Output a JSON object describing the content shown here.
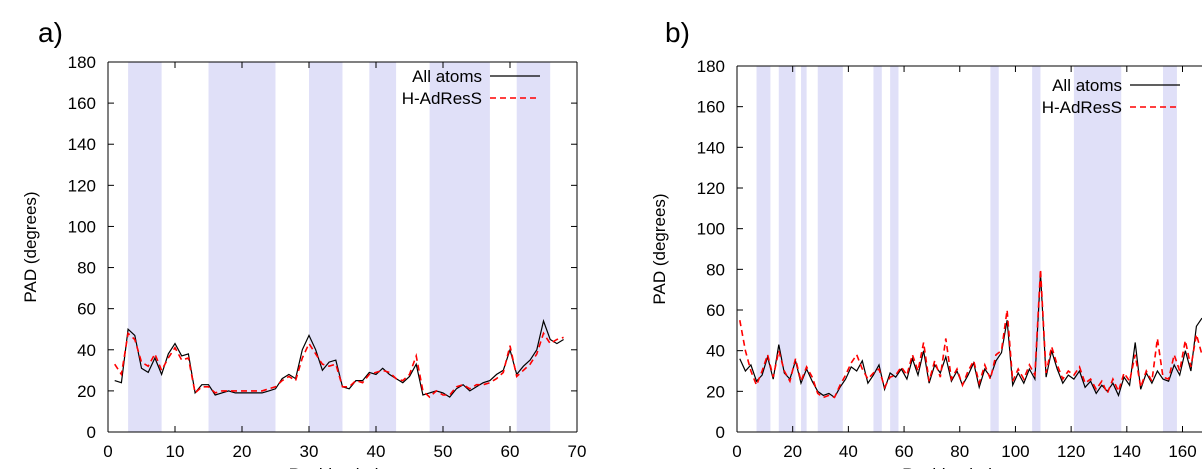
{
  "chart_data": [
    {
      "panel_label": "a)",
      "type": "line",
      "xlabel": "Residue index",
      "ylabel": "PAD (degrees)",
      "xlim": [
        0,
        70
      ],
      "ylim": [
        0,
        180
      ],
      "xticks": [
        "0",
        "10",
        "20",
        "30",
        "40",
        "50",
        "60",
        "70"
      ],
      "yticks": [
        "0",
        "20",
        "40",
        "60",
        "80",
        "100",
        "120",
        "140",
        "160",
        "180"
      ],
      "legend": "top-right",
      "grid": false,
      "shaded_regions": [
        [
          3,
          8
        ],
        [
          15,
          25
        ],
        [
          30,
          35
        ],
        [
          39,
          43
        ],
        [
          48,
          57
        ],
        [
          61,
          66
        ]
      ],
      "shade_color": "#e0e0f8",
      "series": [
        {
          "name": "All atoms",
          "color": "#000000",
          "style": "solid",
          "x": [
            1,
            2,
            3,
            4,
            5,
            6,
            7,
            8,
            9,
            10,
            11,
            12,
            13,
            14,
            15,
            16,
            17,
            18,
            19,
            20,
            21,
            22,
            23,
            24,
            25,
            26,
            27,
            28,
            29,
            30,
            31,
            32,
            33,
            34,
            35,
            36,
            37,
            38,
            39,
            40,
            41,
            42,
            43,
            44,
            45,
            46,
            47,
            48,
            49,
            50,
            51,
            52,
            53,
            54,
            55,
            56,
            57,
            58,
            59,
            60,
            61,
            62,
            63,
            64,
            65,
            66,
            67,
            68
          ],
          "y": [
            25,
            24,
            50,
            47,
            31,
            29,
            36,
            28,
            38,
            43,
            37,
            38,
            19,
            23,
            23,
            18,
            19,
            20,
            19,
            19,
            19,
            19,
            19,
            20,
            21,
            26,
            28,
            26,
            40,
            47,
            40,
            30,
            34,
            35,
            22,
            21,
            25,
            25,
            29,
            28,
            31,
            28,
            26,
            24,
            27,
            33,
            18,
            19,
            20,
            19,
            17,
            21,
            23,
            20,
            22,
            24,
            25,
            28,
            30,
            40,
            28,
            32,
            35,
            40,
            54,
            45,
            43,
            45
          ]
        },
        {
          "name": "H-AdResS",
          "color": "#ff0000",
          "style": "dashed",
          "x": [
            1,
            2,
            3,
            4,
            5,
            6,
            7,
            8,
            9,
            10,
            11,
            12,
            13,
            14,
            15,
            16,
            17,
            18,
            19,
            20,
            21,
            22,
            23,
            24,
            25,
            26,
            27,
            28,
            29,
            30,
            31,
            32,
            33,
            34,
            35,
            36,
            37,
            38,
            39,
            40,
            41,
            42,
            43,
            44,
            45,
            46,
            47,
            48,
            49,
            50,
            51,
            52,
            53,
            54,
            55,
            56,
            57,
            58,
            59,
            60,
            61,
            62,
            63,
            64,
            65,
            66,
            67,
            68
          ],
          "y": [
            33,
            28,
            48,
            45,
            34,
            32,
            38,
            30,
            36,
            41,
            35,
            36,
            19,
            22,
            22,
            19,
            20,
            20,
            20,
            20,
            20,
            20,
            20,
            21,
            22,
            25,
            27,
            25,
            36,
            43,
            38,
            33,
            32,
            33,
            22,
            22,
            25,
            24,
            28,
            29,
            30,
            29,
            26,
            25,
            28,
            37,
            20,
            17,
            20,
            18,
            18,
            22,
            23,
            21,
            23,
            23,
            24,
            26,
            29,
            42,
            27,
            30,
            33,
            38,
            48,
            43,
            45,
            46
          ]
        }
      ]
    },
    {
      "panel_label": "b)",
      "type": "line",
      "xlabel": "Residue index",
      "ylabel": "PAD (degrees)",
      "xlim": [
        0,
        167
      ],
      "ylim": [
        0,
        180
      ],
      "xticks": [
        "0",
        "20",
        "40",
        "60",
        "80",
        "100",
        "120",
        "140",
        "160"
      ],
      "yticks": [
        "0",
        "20",
        "40",
        "60",
        "80",
        "100",
        "120",
        "140",
        "160",
        "180"
      ],
      "legend": "top-right",
      "grid": false,
      "shaded_regions": [
        [
          7,
          12
        ],
        [
          15,
          21
        ],
        [
          23,
          25
        ],
        [
          29,
          38
        ],
        [
          49,
          52
        ],
        [
          55,
          58
        ],
        [
          91,
          94
        ],
        [
          106,
          109
        ],
        [
          121,
          138
        ],
        [
          153,
          158
        ]
      ],
      "shade_color": "#e0e0f8",
      "series": [
        {
          "name": "All atoms",
          "color": "#000000",
          "style": "solid",
          "x": [
            1,
            3,
            5,
            7,
            9,
            11,
            13,
            15,
            17,
            19,
            21,
            23,
            25,
            27,
            29,
            31,
            33,
            35,
            37,
            39,
            41,
            43,
            45,
            47,
            49,
            51,
            53,
            55,
            57,
            59,
            61,
            63,
            65,
            67,
            69,
            71,
            73,
            75,
            77,
            79,
            81,
            83,
            85,
            87,
            89,
            91,
            93,
            95,
            97,
            99,
            101,
            103,
            105,
            107,
            109,
            111,
            113,
            115,
            117,
            119,
            121,
            123,
            125,
            127,
            129,
            131,
            133,
            135,
            137,
            139,
            141,
            143,
            145,
            147,
            149,
            151,
            153,
            155,
            157,
            159,
            161,
            163,
            165,
            167
          ],
          "y": [
            36,
            30,
            33,
            25,
            28,
            37,
            26,
            43,
            29,
            26,
            35,
            24,
            31,
            25,
            20,
            18,
            19,
            17,
            22,
            26,
            32,
            30,
            35,
            24,
            28,
            33,
            21,
            29,
            27,
            31,
            26,
            36,
            28,
            40,
            24,
            33,
            29,
            37,
            25,
            30,
            23,
            28,
            34,
            22,
            31,
            27,
            35,
            39,
            55,
            23,
            29,
            24,
            31,
            26,
            78,
            27,
            40,
            31,
            24,
            28,
            26,
            30,
            22,
            25,
            19,
            23,
            20,
            24,
            18,
            27,
            23,
            44,
            21,
            29,
            24,
            30,
            26,
            25,
            33,
            28,
            40,
            30,
            52,
            56
          ]
        },
        {
          "name": "H-AdResS",
          "color": "#ff0000",
          "style": "dashed",
          "x": [
            1,
            3,
            5,
            7,
            9,
            11,
            13,
            15,
            17,
            19,
            21,
            23,
            25,
            27,
            29,
            31,
            33,
            35,
            37,
            39,
            41,
            43,
            45,
            47,
            49,
            51,
            53,
            55,
            57,
            59,
            61,
            63,
            65,
            67,
            69,
            71,
            73,
            75,
            77,
            79,
            81,
            83,
            85,
            87,
            89,
            91,
            93,
            95,
            97,
            99,
            101,
            103,
            105,
            107,
            109,
            111,
            113,
            115,
            117,
            119,
            121,
            123,
            125,
            127,
            129,
            131,
            133,
            135,
            137,
            139,
            141,
            143,
            145,
            147,
            149,
            151,
            153,
            155,
            157,
            159,
            161,
            163,
            165,
            167
          ],
          "y": [
            55,
            40,
            30,
            23,
            30,
            38,
            27,
            40,
            30,
            25,
            36,
            25,
            32,
            27,
            19,
            17,
            18,
            17,
            23,
            28,
            34,
            38,
            31,
            26,
            29,
            31,
            22,
            27,
            28,
            32,
            28,
            38,
            30,
            44,
            25,
            35,
            27,
            46,
            26,
            31,
            23,
            30,
            35,
            24,
            33,
            26,
            38,
            40,
            60,
            25,
            31,
            26,
            33,
            28,
            80,
            29,
            42,
            33,
            26,
            30,
            28,
            32,
            24,
            26,
            21,
            25,
            19,
            26,
            20,
            29,
            25,
            38,
            22,
            30,
            25,
            46,
            27,
            26,
            38,
            30,
            45,
            32,
            48,
            38
          ]
        }
      ]
    }
  ]
}
